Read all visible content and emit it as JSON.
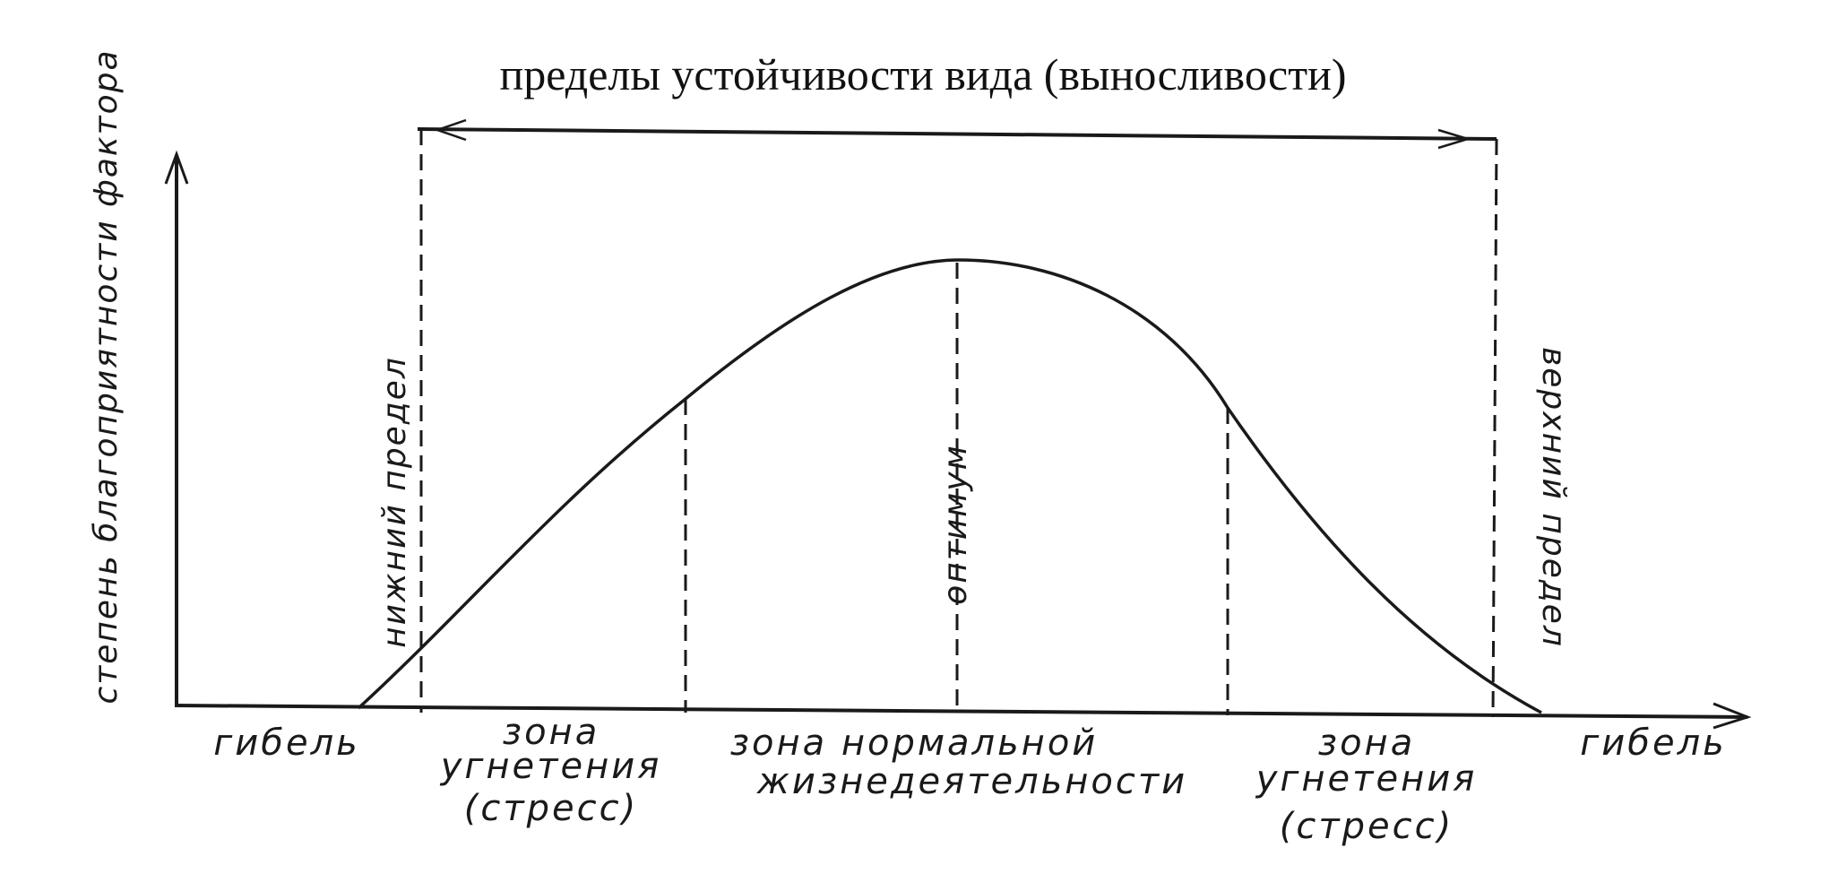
{
  "title": "пределы устойчивости вида (выносливости)",
  "y_axis_label": "степень благоприятности фактора",
  "markers": {
    "lower_limit": "нижний предел",
    "optimum": "оптимум",
    "upper_limit": "верхний предел"
  },
  "zones": {
    "death_left": "гибель",
    "suppression_left": [
      "зона",
      "угнетения",
      "(стресс)"
    ],
    "normal": [
      "зона нормальной",
      "жизнедеятельности"
    ],
    "suppression_right": [
      "зона",
      "угнетения",
      "(стресс)"
    ],
    "death_right": "гибель"
  }
}
